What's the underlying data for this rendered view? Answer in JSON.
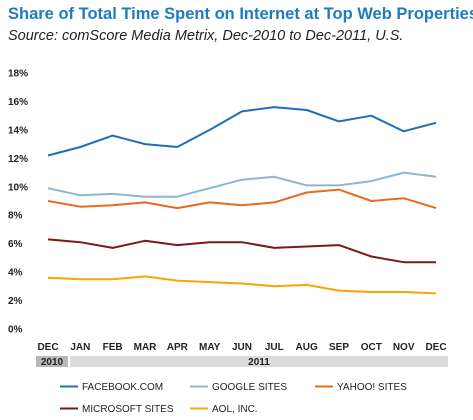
{
  "chart_data": {
    "type": "line",
    "title": "Share of Total Time Spent on Internet at Top Web Properties",
    "subtitle": "Source: comScore Media Metrix, Dec-2010 to Dec-2011, U.S.",
    "categories": [
      "DEC",
      "JAN",
      "FEB",
      "MAR",
      "APR",
      "MAY",
      "JUN",
      "JUL",
      "AUG",
      "SEP",
      "OCT",
      "NOV",
      "DEC"
    ],
    "year_labels": [
      "2010",
      "2011"
    ],
    "y_ticks": [
      "0%",
      "2%",
      "4%",
      "6%",
      "8%",
      "10%",
      "12%",
      "14%",
      "16%",
      "18%"
    ],
    "ylim": [
      0,
      18
    ],
    "grid": false,
    "legend_position": "bottom",
    "series": [
      {
        "name": "FACEBOOK.COM",
        "color": "#1f6fb8",
        "values": [
          12.2,
          12.8,
          13.6,
          13.0,
          12.8,
          14.0,
          15.3,
          15.6,
          15.4,
          14.6,
          15.0,
          13.9,
          14.5
        ]
      },
      {
        "name": "GOOGLE SITES",
        "color": "#8fb6cf",
        "values": [
          9.9,
          9.4,
          9.5,
          9.3,
          9.3,
          9.9,
          10.5,
          10.7,
          10.1,
          10.1,
          10.4,
          11.0,
          10.7
        ]
      },
      {
        "name": "YAHOO! SITES",
        "color": "#e86a1e",
        "values": [
          9.0,
          8.6,
          8.7,
          8.9,
          8.5,
          8.9,
          8.7,
          8.9,
          9.6,
          9.8,
          9.0,
          9.2,
          8.5
        ]
      },
      {
        "name": "MICROSOFT SITES",
        "color": "#7a1a12",
        "values": [
          6.3,
          6.1,
          5.7,
          6.2,
          5.9,
          6.1,
          6.1,
          5.7,
          5.8,
          5.9,
          5.1,
          4.7,
          4.7
        ]
      },
      {
        "name": "AOL, INC.",
        "color": "#f5a800",
        "values": [
          3.6,
          3.5,
          3.5,
          3.7,
          3.4,
          3.3,
          3.2,
          3.0,
          3.1,
          2.7,
          2.6,
          2.6,
          2.5
        ]
      }
    ]
  }
}
